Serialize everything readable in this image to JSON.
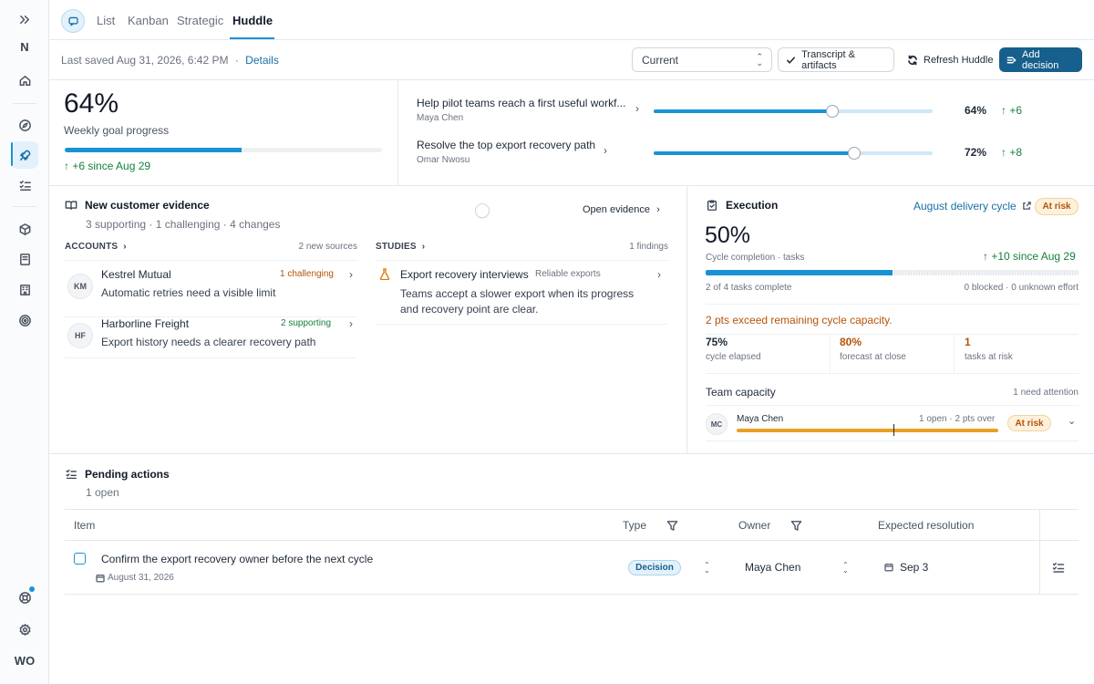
{
  "sidebar": {
    "workspace_letter": "N",
    "avatar": "WO"
  },
  "tabs": {
    "items": [
      "List",
      "Kanban",
      "Strategic",
      "Huddle"
    ],
    "active": "Huddle"
  },
  "toolbar": {
    "last_saved": "Last saved Aug 31, 2026, 6:42 PM",
    "separator": "·",
    "details_link": "Details",
    "select_value": "Current",
    "transcript_button": "Transcript & artifacts",
    "refresh_button": "Refresh Huddle",
    "add_decision_button": "Add decision"
  },
  "goal": {
    "percent_text": "64%",
    "progress_fraction": 0.64,
    "label": "Weekly goal progress",
    "delta": "+6 since Aug 29"
  },
  "key_results": [
    {
      "title": "Help pilot teams reach a first useful workf...",
      "owner": "Maya Chen",
      "value_fraction": 0.64,
      "percent": "64%",
      "delta": "+6"
    },
    {
      "title": "Resolve the top export recovery path",
      "owner": "Omar Nwosu",
      "value_fraction": 0.72,
      "percent": "72%",
      "delta": "+8"
    }
  ],
  "evidence": {
    "title": "New customer evidence",
    "summary": "3 supporting · 1 challenging · 4 changes",
    "open_link": "Open evidence",
    "accounts_heading": "ACCOUNTS",
    "accounts_meta": "2 new sources",
    "studies_heading": "STUDIES",
    "studies_meta": "1 findings",
    "accounts": [
      {
        "initials": "KM",
        "name": "Kestrel Mutual",
        "tag": "1 challenging",
        "tag_color": "#b45309",
        "note": "Automatic retries need a visible limit"
      },
      {
        "initials": "HF",
        "name": "Harborline Freight",
        "tag": "2 supporting",
        "tag_color": "#16803c",
        "note": "Export history needs a clearer recovery path"
      }
    ],
    "studies": [
      {
        "title": "Export recovery interviews",
        "tag": "Reliable exports",
        "note": "Teams accept a slower export when its progress and recovery point are clear."
      }
    ]
  },
  "execution": {
    "title": "Execution",
    "cycle_link": "August delivery cycle",
    "status_badge": "At risk",
    "percent_text": "50%",
    "completion_fraction": 0.5,
    "completion_label": "Cycle completion · tasks",
    "delta": "+10 since Aug 29",
    "tasks_complete": "2 of 4 tasks complete",
    "blocked_meta": "0 blocked · 0 unknown effort",
    "warning": "2 pts exceed remaining cycle capacity.",
    "stats": [
      {
        "value": "75%",
        "label": "cycle elapsed"
      },
      {
        "value": "80%",
        "label": "forecast at close"
      },
      {
        "value": "1",
        "label": "tasks at risk"
      }
    ],
    "capacity": {
      "title": "Team capacity",
      "meta": "1 need attention",
      "members": [
        {
          "initials": "MC",
          "name": "Maya Chen",
          "meta": "1 open · 2 pts over",
          "badge": "At risk"
        }
      ]
    }
  },
  "pending": {
    "title": "Pending actions",
    "count": "1 open",
    "columns": {
      "item": "Item",
      "type": "Type",
      "owner": "Owner",
      "expected": "Expected resolution"
    },
    "rows": [
      {
        "title": "Confirm the export recovery owner before the next cycle",
        "date": "August 31, 2026",
        "type": "Decision",
        "owner": "Maya Chen",
        "expected": "Sep 3"
      }
    ]
  },
  "icons": {
    "sidebar": [
      "expand-icon",
      "home-icon",
      "compass-icon",
      "rocket-icon",
      "checklist-icon",
      "cube-icon",
      "book-icon",
      "building-icon",
      "target-icon",
      "help-icon",
      "gear-icon"
    ],
    "accent_color": "#1992d4",
    "primary_button_color": "#175f8c"
  }
}
